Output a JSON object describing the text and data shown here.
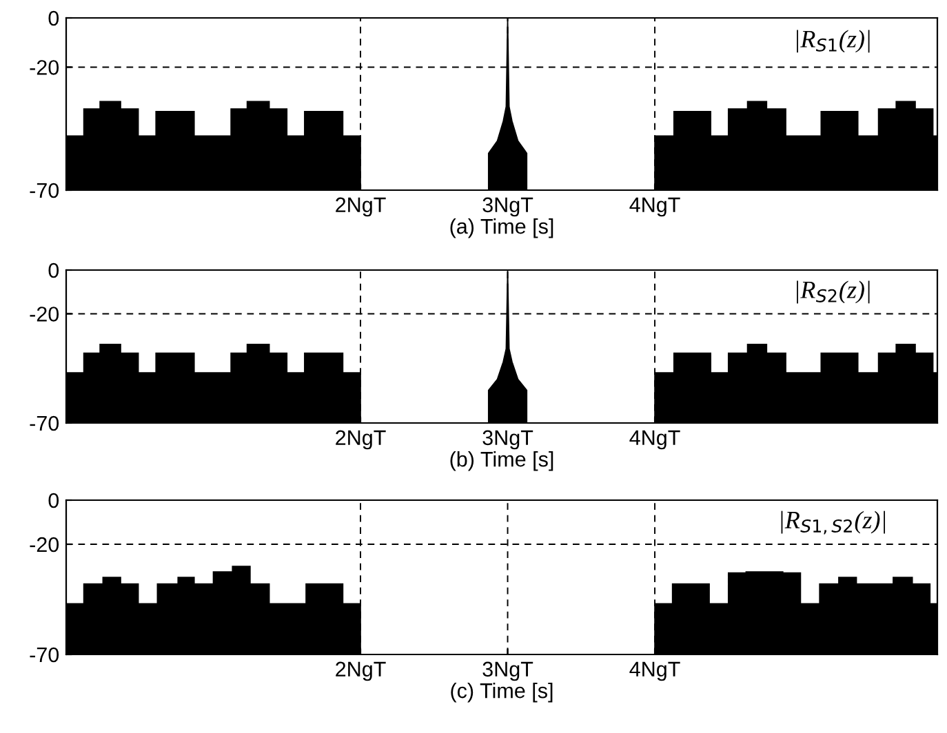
{
  "chart_data": [
    {
      "type": "area",
      "xlabel": "(a) Time [s]",
      "annotations": [
        "|R$_{S1}$(z)|"
      ],
      "xlim": [
        0,
        5.92
      ],
      "xticks": [
        {
          "value": 2,
          "label": "2NgT"
        },
        {
          "value": 3,
          "label": "3NgT"
        },
        {
          "value": 4,
          "label": "4NgT"
        }
      ],
      "ylim": [
        -70,
        0
      ],
      "yticks": [
        -70,
        -20,
        0
      ],
      "grid": true,
      "series": [
        {
          "color": "#000000",
          "x": [
            0,
            0,
            0.12,
            0.12,
            0.23,
            0.23,
            0.37,
            0.37,
            0.49,
            0.49,
            0.61,
            0.61,
            0.87,
            0.87,
            1.12,
            1.12,
            1.23,
            1.23,
            1.38,
            1.38,
            1.5,
            1.5,
            1.62,
            1.62,
            1.88,
            1.88,
            2.0,
            2.0,
            2.5,
            2.87,
            2.87,
            2.93,
            2.97,
            2.99,
            3.0,
            3.01,
            3.03,
            3.07,
            3.13,
            3.13,
            3.5,
            4.0,
            4.0,
            4.13,
            4.13,
            4.38,
            4.38,
            4.5,
            4.5,
            4.63,
            4.63,
            4.76,
            4.76,
            4.89,
            4.89,
            5.13,
            5.13,
            5.38,
            5.38,
            5.52,
            5.52,
            5.64,
            5.64,
            5.77,
            5.77,
            5.89,
            5.89,
            5.92,
            5.92
          ],
          "values": [
            -70,
            -48,
            -48,
            -37,
            -37,
            -34,
            -34,
            -37,
            -37,
            -48,
            -48,
            -38,
            -38,
            -48,
            -48,
            -37,
            -37,
            -34,
            -34,
            -37,
            -37,
            -48,
            -48,
            -38,
            -38,
            -48,
            -48,
            -70,
            -70,
            -70,
            -55,
            -50,
            -42,
            -36,
            0,
            -36,
            -42,
            -50,
            -55,
            -70,
            -70,
            -70,
            -48,
            -48,
            -38,
            -38,
            -48,
            -48,
            -37,
            -37,
            -34,
            -34,
            -37,
            -37,
            -48,
            -48,
            -38,
            -38,
            -48,
            -48,
            -37,
            -37,
            -34,
            -34,
            -37,
            -37,
            -48,
            -48,
            -70
          ]
        }
      ]
    },
    {
      "type": "area",
      "xlabel": "(b) Time [s]",
      "annotations": [
        "|R$_{S2}$(z)|"
      ],
      "xlim": [
        0,
        5.92
      ],
      "xticks": [
        {
          "value": 2,
          "label": "2NgT"
        },
        {
          "value": 3,
          "label": "3NgT"
        },
        {
          "value": 4,
          "label": "4NgT"
        }
      ],
      "ylim": [
        -70,
        0
      ],
      "yticks": [
        -70,
        -20,
        0
      ],
      "grid": true,
      "series": [
        {
          "color": "#000000",
          "x": [
            0,
            0,
            0.12,
            0.12,
            0.23,
            0.23,
            0.37,
            0.37,
            0.49,
            0.49,
            0.61,
            0.61,
            0.87,
            0.87,
            1.12,
            1.12,
            1.23,
            1.23,
            1.38,
            1.38,
            1.5,
            1.5,
            1.62,
            1.62,
            1.88,
            1.88,
            2.0,
            2.0,
            2.5,
            2.87,
            2.87,
            2.93,
            2.97,
            2.99,
            3.0,
            3.01,
            3.03,
            3.07,
            3.13,
            3.13,
            3.5,
            4.0,
            4.0,
            4.13,
            4.13,
            4.38,
            4.38,
            4.5,
            4.5,
            4.63,
            4.63,
            4.76,
            4.76,
            4.89,
            4.89,
            5.13,
            5.13,
            5.38,
            5.38,
            5.52,
            5.52,
            5.64,
            5.64,
            5.77,
            5.77,
            5.89,
            5.89,
            5.92,
            5.92
          ],
          "values": [
            -70,
            -47,
            -47,
            -38,
            -38,
            -34,
            -34,
            -38,
            -38,
            -47,
            -47,
            -38,
            -38,
            -47,
            -47,
            -38,
            -38,
            -34,
            -34,
            -38,
            -38,
            -47,
            -47,
            -38,
            -38,
            -47,
            -47,
            -70,
            -70,
            -70,
            -55,
            -50,
            -42,
            -36,
            0,
            -36,
            -42,
            -50,
            -55,
            -70,
            -70,
            -70,
            -47,
            -47,
            -38,
            -38,
            -47,
            -47,
            -38,
            -38,
            -34,
            -34,
            -38,
            -38,
            -47,
            -47,
            -38,
            -38,
            -47,
            -47,
            -38,
            -38,
            -34,
            -34,
            -38,
            -38,
            -47,
            -47,
            -70
          ]
        }
      ]
    },
    {
      "type": "area",
      "xlabel": "(c) Time [s]",
      "annotations": [
        "|R$_{S1,S2}$(z)|"
      ],
      "xlim": [
        0,
        5.92
      ],
      "xticks": [
        {
          "value": 2,
          "label": "2NgT"
        },
        {
          "value": 3,
          "label": "3NgT"
        },
        {
          "value": 4,
          "label": "4NgT"
        }
      ],
      "ylim": [
        -70,
        0
      ],
      "yticks": [
        -70,
        -20,
        0
      ],
      "grid": true,
      "series": [
        {
          "color": "#000000",
          "x": [
            0,
            0,
            0.12,
            0.12,
            0.25,
            0.25,
            0.37,
            0.37,
            0.49,
            0.49,
            0.62,
            0.62,
            0.76,
            0.76,
            0.87,
            0.87,
            1.0,
            1.0,
            1.13,
            1.13,
            1.25,
            1.25,
            1.38,
            1.38,
            1.63,
            1.63,
            1.88,
            1.88,
            2.0,
            2.0,
            3.0,
            4.0,
            4.0,
            4.12,
            4.12,
            4.37,
            4.37,
            4.5,
            4.5,
            4.62,
            4.62,
            4.87,
            4.87,
            4.99,
            4.99,
            5.12,
            5.12,
            5.25,
            5.25,
            5.37,
            5.37,
            5.62,
            5.62,
            5.75,
            5.75,
            5.87,
            5.87,
            5.92,
            5.92
          ],
          "values": [
            -70,
            -47,
            -47,
            -38,
            -38,
            -35,
            -35,
            -38,
            -38,
            -47,
            -47,
            -38,
            -38,
            -35,
            -35,
            -38,
            -38,
            -32.5,
            -32.5,
            -30,
            -30,
            -38,
            -38,
            -47,
            -47,
            -38,
            -38,
            -47,
            -47,
            -70,
            -70,
            -70,
            -47,
            -47,
            -38,
            -38,
            -47,
            -47,
            -33,
            -33,
            -32.5,
            -32.5,
            -33,
            -33,
            -47,
            -47,
            -38,
            -38,
            -35,
            -35,
            -38,
            -38,
            -35,
            -35,
            -38,
            -38,
            -47,
            -47,
            -70
          ]
        }
      ]
    }
  ]
}
